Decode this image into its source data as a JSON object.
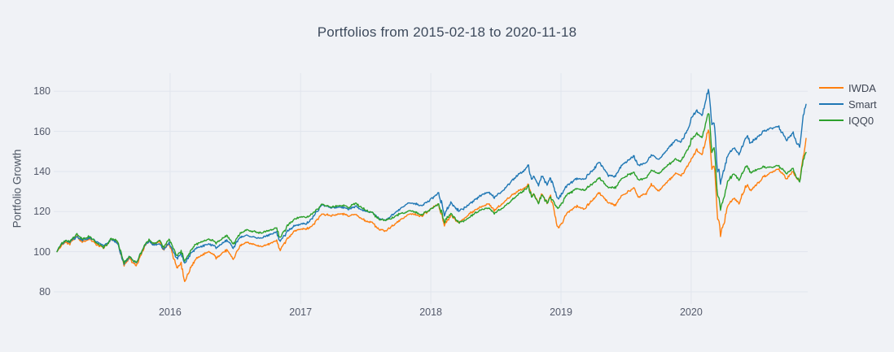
{
  "title": "Portfolios from 2015-02-18 to 2020-11-18",
  "colors": {
    "background": "#f0f2f6",
    "grid": "#e1e5ed",
    "title_text": "#3d4a5c",
    "tick_text": "#53596a",
    "iwda": "#ff7f0e",
    "smart": "#1f77b4",
    "iqq0": "#2ca02c"
  },
  "chart_data": {
    "type": "line",
    "title": "Portfolios from 2015-02-18 to 2020-11-18",
    "xlabel": "",
    "ylabel": "Portfolio Growth",
    "x_range": [
      "2015-02-18",
      "2020-11-18"
    ],
    "ylim": [
      74,
      189
    ],
    "yticks": [
      80,
      100,
      120,
      140,
      160,
      180
    ],
    "xticks": [
      {
        "label": "2016",
        "date": "2016-01-01"
      },
      {
        "label": "2017",
        "date": "2017-01-01"
      },
      {
        "label": "2018",
        "date": "2018-01-01"
      },
      {
        "label": "2019",
        "date": "2019-01-01"
      },
      {
        "label": "2020",
        "date": "2020-01-01"
      }
    ],
    "grid": true,
    "legend_position": "right",
    "series": [
      {
        "name": "IWDA",
        "color": "#ff7f0e"
      },
      {
        "name": "Smart",
        "color": "#1f77b4"
      },
      {
        "name": "IQQ0",
        "color": "#2ca02c"
      }
    ],
    "columns": [
      "date",
      "IWDA",
      "Smart",
      "IQQ0"
    ],
    "points": [
      [
        "2015-02-18",
        100,
        100,
        100
      ],
      [
        "2015-03-02",
        102.5,
        103,
        103.5
      ],
      [
        "2015-03-13",
        104.5,
        105,
        105.5
      ],
      [
        "2015-03-26",
        103.5,
        104.5,
        105
      ],
      [
        "2015-04-15",
        107.5,
        107.5,
        108.5
      ],
      [
        "2015-04-29",
        104.5,
        105.5,
        106
      ],
      [
        "2015-05-21",
        106.5,
        106.5,
        107.5
      ],
      [
        "2015-06-09",
        103.5,
        104.5,
        104.5
      ],
      [
        "2015-06-29",
        101.5,
        102.5,
        102.5
      ],
      [
        "2015-07-20",
        105.5,
        106,
        107
      ],
      [
        "2015-08-07",
        104,
        104.5,
        105.5
      ],
      [
        "2015-08-24",
        92.5,
        94,
        94.5
      ],
      [
        "2015-09-09",
        96.5,
        97.5,
        97.5
      ],
      [
        "2015-09-29",
        92.5,
        94,
        94.5
      ],
      [
        "2015-10-23",
        103,
        103.5,
        104.5
      ],
      [
        "2015-11-03",
        105,
        105,
        106.5
      ],
      [
        "2015-11-16",
        103,
        103.5,
        104.5
      ],
      [
        "2015-12-02",
        105,
        104.5,
        106
      ],
      [
        "2015-12-14",
        100.5,
        101.5,
        102
      ],
      [
        "2015-12-29",
        104.5,
        105,
        106.5
      ],
      [
        "2016-01-20",
        92.5,
        97,
        98
      ],
      [
        "2016-02-01",
        95,
        99.5,
        100.5
      ],
      [
        "2016-02-11",
        85.5,
        94.5,
        95.5
      ],
      [
        "2016-03-04",
        94.5,
        100.5,
        102.5
      ],
      [
        "2016-03-21",
        97.5,
        102.5,
        104.5
      ],
      [
        "2016-04-20",
        100.5,
        104.5,
        106
      ],
      [
        "2016-05-09",
        97.5,
        102.5,
        104
      ],
      [
        "2016-06-08",
        101.5,
        105.5,
        107.5
      ],
      [
        "2016-06-27",
        96.5,
        101.5,
        103.5
      ],
      [
        "2016-07-15",
        103,
        107,
        109
      ],
      [
        "2016-08-02",
        104.5,
        108,
        110.5
      ],
      [
        "2016-09-13",
        102.5,
        106.5,
        108.5
      ],
      [
        "2016-10-25",
        105.5,
        109,
        111.5
      ],
      [
        "2016-11-04",
        100.5,
        104.5,
        107
      ],
      [
        "2016-11-25",
        106,
        109.5,
        113
      ],
      [
        "2016-12-13",
        109.5,
        112.5,
        116
      ],
      [
        "2016-12-30",
        110.5,
        113.5,
        117
      ],
      [
        "2017-01-17",
        111,
        114,
        117
      ],
      [
        "2017-02-01",
        112.5,
        116,
        118.5
      ],
      [
        "2017-03-01",
        118.5,
        123,
        124
      ],
      [
        "2017-03-27",
        117.5,
        122,
        123
      ],
      [
        "2017-04-26",
        118.5,
        122.5,
        123.5
      ],
      [
        "2017-05-17",
        117.5,
        121.5,
        122
      ],
      [
        "2017-06-02",
        119,
        123,
        124.5
      ],
      [
        "2017-06-29",
        116,
        120.5,
        121.5
      ],
      [
        "2017-07-20",
        114.5,
        119.5,
        120
      ],
      [
        "2017-08-11",
        111,
        117,
        116.5
      ],
      [
        "2017-08-29",
        110.5,
        116.5,
        116
      ],
      [
        "2017-09-14",
        113,
        119,
        116.5
      ],
      [
        "2017-10-05",
        116,
        121.5,
        118.5
      ],
      [
        "2017-10-24",
        118.5,
        123.5,
        119.5
      ],
      [
        "2017-11-07",
        119.5,
        124.5,
        120.5
      ],
      [
        "2017-12-06",
        118,
        123,
        118.5
      ],
      [
        "2017-12-29",
        121,
        126,
        120.5
      ],
      [
        "2018-01-23",
        124,
        129.5,
        123
      ],
      [
        "2018-02-08",
        114,
        118.5,
        114.5
      ],
      [
        "2018-02-26",
        118.5,
        124,
        118.5
      ],
      [
        "2018-03-22",
        114.5,
        119.5,
        114
      ],
      [
        "2018-04-24",
        119,
        124,
        117.5
      ],
      [
        "2018-05-21",
        122,
        128,
        120.5
      ],
      [
        "2018-06-12",
        124,
        129.5,
        121.5
      ],
      [
        "2018-06-27",
        120.5,
        126.5,
        119
      ],
      [
        "2018-07-25",
        124.5,
        130.5,
        122.5
      ],
      [
        "2018-08-28",
        129,
        137.5,
        128
      ],
      [
        "2018-09-20",
        131,
        140.5,
        130.5
      ],
      [
        "2018-10-01",
        133,
        143,
        132.5
      ],
      [
        "2018-10-11",
        127,
        135.5,
        127
      ],
      [
        "2018-10-17",
        129,
        138,
        129
      ],
      [
        "2018-10-29",
        124.5,
        133,
        124.5
      ],
      [
        "2018-11-08",
        128.5,
        137.5,
        128.5
      ],
      [
        "2018-11-23",
        124.5,
        133.5,
        125
      ],
      [
        "2018-12-03",
        127.5,
        136.5,
        127.5
      ],
      [
        "2018-12-24",
        111.5,
        126.5,
        122.5
      ],
      [
        "2019-01-04",
        114,
        129.5,
        125
      ],
      [
        "2019-01-18",
        119,
        133.5,
        128.5
      ],
      [
        "2019-02-15",
        123,
        137,
        131.5
      ],
      [
        "2019-03-08",
        122,
        136.5,
        131
      ],
      [
        "2019-04-01",
        126.5,
        141,
        134.5
      ],
      [
        "2019-04-18",
        129.5,
        145,
        137
      ],
      [
        "2019-05-15",
        124.5,
        138.5,
        132
      ],
      [
        "2019-06-03",
        123.5,
        138,
        131.5
      ],
      [
        "2019-06-20",
        128.5,
        143.5,
        136
      ],
      [
        "2019-07-25",
        132.5,
        147.5,
        139.5
      ],
      [
        "2019-08-05",
        127.5,
        142.5,
        135.5
      ],
      [
        "2019-08-27",
        129,
        144,
        136.5
      ],
      [
        "2019-09-12",
        133.5,
        148.5,
        140.5
      ],
      [
        "2019-10-02",
        130.5,
        146,
        138.5
      ],
      [
        "2019-10-28",
        135.5,
        151,
        142.5
      ],
      [
        "2019-11-19",
        139.5,
        155.5,
        146
      ],
      [
        "2019-12-03",
        137.5,
        153.5,
        144.5
      ],
      [
        "2019-12-27",
        144,
        162,
        153
      ],
      [
        "2020-01-01",
        145.5,
        166,
        155.5
      ],
      [
        "2020-01-17",
        150,
        170,
        159
      ],
      [
        "2020-01-31",
        148,
        168,
        157
      ],
      [
        "2020-02-19",
        161.5,
        181.5,
        170
      ],
      [
        "2020-02-28",
        141,
        163,
        150
      ],
      [
        "2020-03-06",
        143,
        164.5,
        152
      ],
      [
        "2020-03-12",
        124,
        146,
        134
      ],
      [
        "2020-03-16",
        113,
        136.5,
        125
      ],
      [
        "2020-03-18",
        117,
        142,
        128.5
      ],
      [
        "2020-03-23",
        107.5,
        132.5,
        120.5
      ],
      [
        "2020-04-01",
        114,
        140,
        127
      ],
      [
        "2020-04-14",
        123,
        148,
        136
      ],
      [
        "2020-04-29",
        126,
        151.5,
        139.5
      ],
      [
        "2020-05-14",
        123.5,
        149,
        136.5
      ],
      [
        "2020-06-05",
        133.5,
        158.5,
        143.5
      ],
      [
        "2020-06-15",
        130,
        154.5,
        139.5
      ],
      [
        "2020-07-21",
        137.5,
        160,
        142.5
      ],
      [
        "2020-08-12",
        139.5,
        161.5,
        142.5
      ],
      [
        "2020-09-02",
        141,
        162.5,
        143.5
      ],
      [
        "2020-09-24",
        136.5,
        156.5,
        139.5
      ],
      [
        "2020-10-12",
        140,
        160,
        141.5
      ],
      [
        "2020-10-30",
        135.5,
        152.5,
        134.5
      ],
      [
        "2020-11-09",
        147,
        166,
        144
      ],
      [
        "2020-11-13",
        150,
        171,
        147
      ],
      [
        "2020-11-18",
        156.5,
        173.5,
        149.5
      ]
    ]
  }
}
